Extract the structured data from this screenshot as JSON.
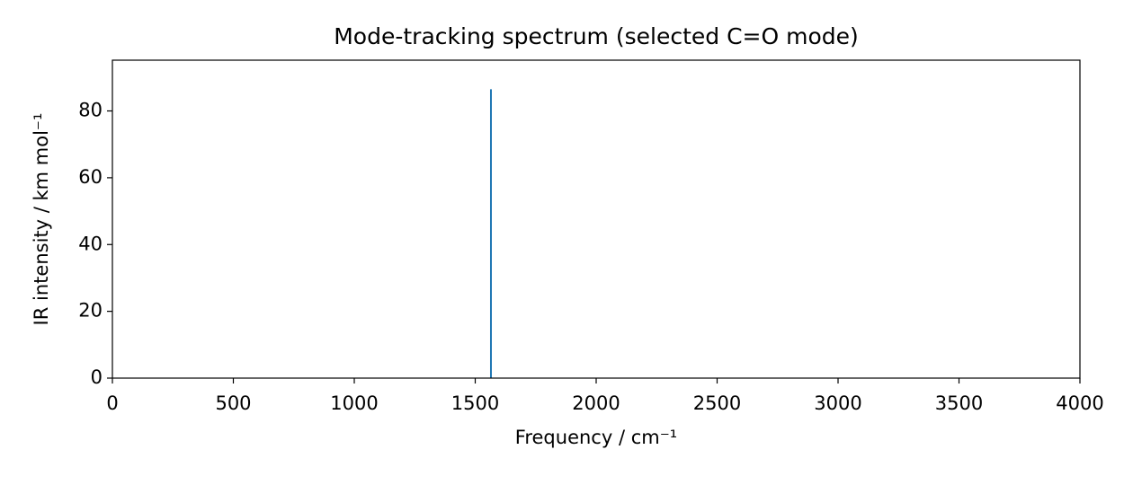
{
  "chart_data": {
    "type": "stick",
    "title": "Mode-tracking spectrum (selected C=O mode)",
    "x_label": "Frequency / cm⁻¹",
    "y_label": "IR intensity / km mol⁻¹",
    "x": [
      1565
    ],
    "values": [
      86.5
    ],
    "color": "#1f77b4",
    "xlim": [
      0,
      4000
    ],
    "xticks": [
      0,
      500,
      1000,
      1500,
      2000,
      2500,
      3000,
      3500,
      4000
    ],
    "ylim": [
      0,
      95.2
    ],
    "yticks": [
      0,
      20,
      40,
      60,
      80
    ]
  }
}
